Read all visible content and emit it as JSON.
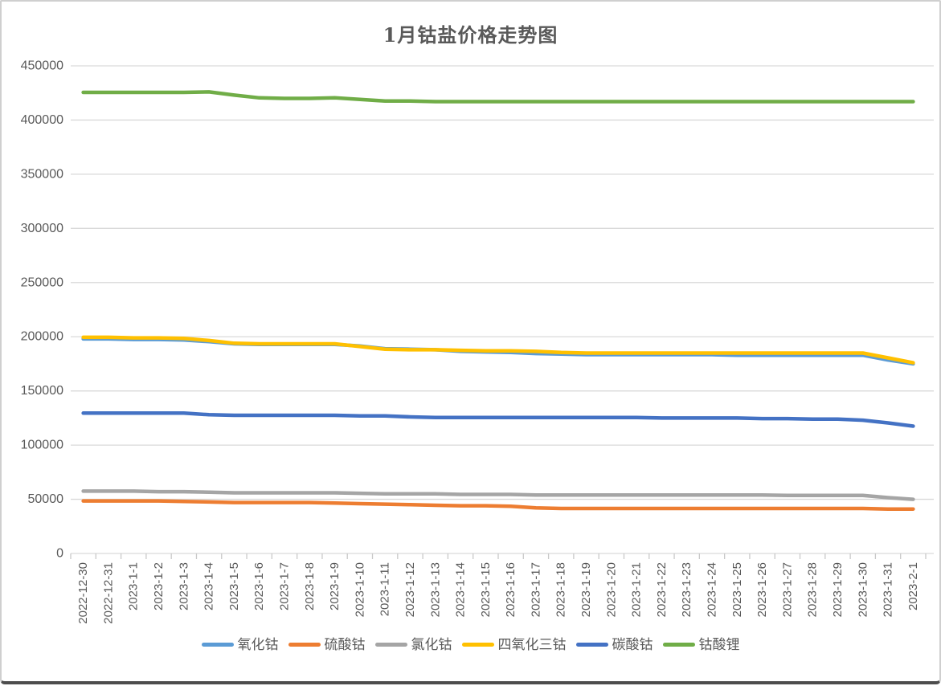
{
  "chart_data": {
    "type": "line",
    "title": "1月钴盐价格走势图",
    "xlabel": "",
    "ylabel": "",
    "grid": true,
    "legend_position": "bottom",
    "y_axis": {
      "min": 0,
      "max": 450000,
      "step": 50000,
      "tick_labels": [
        "0",
        "50000",
        "100000",
        "150000",
        "200000",
        "250000",
        "300000",
        "350000",
        "400000",
        "450000"
      ]
    },
    "categories": [
      "2022-12-30",
      "2022-12-31",
      "2023-1-1",
      "2023-1-2",
      "2023-1-3",
      "2023-1-4",
      "2023-1-5",
      "2023-1-6",
      "2023-1-7",
      "2023-1-8",
      "2023-1-9",
      "2023-1-10",
      "2023-1-11",
      "2023-1-12",
      "2023-1-13",
      "2023-1-14",
      "2023-1-15",
      "2023-1-16",
      "2023-1-17",
      "2023-1-18",
      "2023-1-19",
      "2023-1-20",
      "2023-1-21",
      "2023-1-22",
      "2023-1-23",
      "2023-1-24",
      "2023-1-25",
      "2023-1-26",
      "2023-1-27",
      "2023-1-28",
      "2023-1-29",
      "2023-1-30",
      "2023-1-31",
      "2023-2-1"
    ],
    "series": [
      {
        "name": "氧化钴",
        "color": "#5B9BD5",
        "values": [
          198000,
          198000,
          197500,
          197500,
          197000,
          195500,
          193500,
          193000,
          193000,
          193000,
          193000,
          191500,
          189000,
          188500,
          188000,
          186500,
          186000,
          185500,
          184500,
          184000,
          183500,
          183500,
          183500,
          183500,
          183500,
          183500,
          183000,
          183000,
          183000,
          183000,
          183000,
          183000,
          178500,
          175000
        ]
      },
      {
        "name": "硫酸钴",
        "color": "#ED7D31",
        "values": [
          48500,
          48500,
          48500,
          48500,
          48000,
          47500,
          47000,
          47000,
          47000,
          47000,
          46500,
          46000,
          45500,
          45000,
          44500,
          44000,
          44000,
          43500,
          42000,
          41500,
          41500,
          41500,
          41500,
          41500,
          41500,
          41500,
          41500,
          41500,
          41500,
          41500,
          41500,
          41500,
          41000,
          41000
        ]
      },
      {
        "name": "氯化钴",
        "color": "#A5A5A5",
        "values": [
          57500,
          57500,
          57500,
          57000,
          57000,
          56500,
          56000,
          56000,
          56000,
          56000,
          56000,
          55500,
          55000,
          55000,
          55000,
          54500,
          54500,
          54500,
          54000,
          54000,
          54000,
          54000,
          54000,
          54000,
          54000,
          54000,
          54000,
          54000,
          53500,
          53500,
          53500,
          53500,
          51500,
          50000
        ]
      },
      {
        "name": "四氧化三钴",
        "color": "#FFC000",
        "values": [
          199500,
          199500,
          199000,
          199000,
          198500,
          196500,
          194000,
          193500,
          193500,
          193500,
          193500,
          191000,
          188500,
          188000,
          188000,
          187500,
          187000,
          187000,
          186500,
          185500,
          185000,
          185000,
          185000,
          185000,
          185000,
          185000,
          185000,
          185000,
          185000,
          185000,
          185000,
          185000,
          180500,
          176000
        ]
      },
      {
        "name": "碳酸钴",
        "color": "#4472C4",
        "values": [
          129500,
          129500,
          129500,
          129500,
          129500,
          128000,
          127500,
          127500,
          127500,
          127500,
          127500,
          127000,
          127000,
          126000,
          125500,
          125500,
          125500,
          125500,
          125500,
          125500,
          125500,
          125500,
          125500,
          125000,
          125000,
          125000,
          125000,
          124500,
          124500,
          124000,
          124000,
          123000,
          120500,
          117500
        ]
      },
      {
        "name": "钴酸锂",
        "color": "#70AD47",
        "values": [
          425500,
          425500,
          425500,
          425500,
          425500,
          426000,
          423000,
          420500,
          420000,
          420000,
          420500,
          419000,
          417500,
          417500,
          417000,
          417000,
          417000,
          417000,
          417000,
          417000,
          417000,
          417000,
          417000,
          417000,
          417000,
          417000,
          417000,
          417000,
          417000,
          417000,
          417000,
          417000,
          417000,
          417000
        ]
      }
    ]
  },
  "colors": {
    "grid": "#D9D9D9",
    "tick": "#C9C9C9",
    "axis_text": "#595959",
    "title_text": "#595959"
  }
}
